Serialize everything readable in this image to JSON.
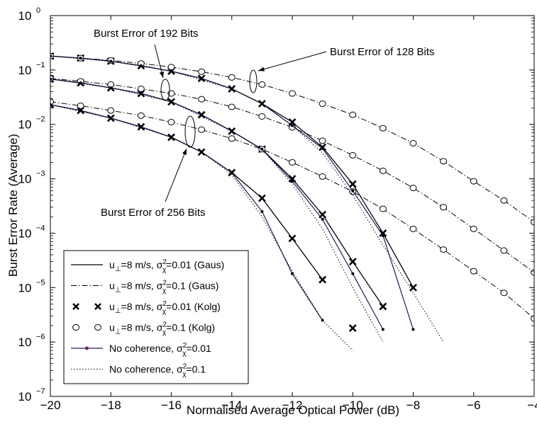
{
  "chart_data": {
    "type": "line",
    "title": "",
    "xlabel": "Normalised Average Optical Power (dB)",
    "ylabel": "Burst Error Rate (Average)",
    "xlim": [
      -20,
      -4
    ],
    "ylim_log10": [
      -7,
      0
    ],
    "yscale": "log",
    "grid": false,
    "legend_position": "bottom-left",
    "x_ticks": [
      -20,
      -18,
      -16,
      -14,
      -12,
      -10,
      -8,
      -6,
      -4
    ],
    "x_tick_labels": [
      "−20",
      "−18",
      "−16",
      "−14",
      "−12",
      "−10",
      "−8",
      "−6",
      "−4"
    ],
    "y_tick_exponents": [
      0,
      -1,
      -2,
      -3,
      -4,
      -5,
      -6,
      -7
    ],
    "y_tick_base": "10",
    "annotations": [
      {
        "text": "Burst Error of 192 Bits"
      },
      {
        "text": "Burst Error of 128 Bits"
      },
      {
        "text": "Burst Error of 256 Bits"
      }
    ],
    "legend": [
      {
        "style": "solid",
        "main": "u",
        "sub": "⊥",
        "rest1": "=8 m/s, σ",
        "sup": "2",
        "sub2": "χ",
        "rest2": "=0.01 (Gaus)"
      },
      {
        "style": "dashdot",
        "main": "u",
        "sub": "⊥",
        "rest1": "=8 m/s,  σ",
        "sup": "2",
        "sub2": "χ",
        "rest2": "=0.1 (Gaus)"
      },
      {
        "style": "x",
        "main": "u",
        "sub": "⊥",
        "rest1": "=8 m/s, σ",
        "sup": "2",
        "sub2": "χ",
        "rest2": "=0.01 (Kolg)"
      },
      {
        "style": "circle",
        "main": "u",
        "sub": "⊥",
        "rest1": "=8 m/s,  σ",
        "sup": "2",
        "sub2": "χ",
        "rest2": "=0.1 (Kolg)"
      },
      {
        "style": "dotline",
        "main": "No coherence, σ",
        "sub": "",
        "rest1": "",
        "sup": "2",
        "sub2": "χ",
        "rest2": "=0.01"
      },
      {
        "style": "dotted",
        "main": "No coherence,  σ",
        "sub": "",
        "rest1": "",
        "sup": "2",
        "sub2": "χ",
        "rest2": "=0.1"
      }
    ],
    "series": [
      {
        "style": "solid",
        "group": "128",
        "x": [
          -20,
          -19,
          -18,
          -17,
          -16,
          -15,
          -14,
          -13,
          -12,
          -11,
          -10,
          -9,
          -8
        ],
        "y": [
          0.18,
          0.165,
          0.145,
          0.12,
          0.095,
          0.07,
          0.045,
          0.024,
          0.011,
          0.0038,
          0.0008,
          0.0001,
          1e-05
        ]
      },
      {
        "style": "solid",
        "group": "192",
        "x": [
          -20,
          -19,
          -18,
          -17,
          -16,
          -15,
          -14,
          -13,
          -12,
          -11,
          -10,
          -9
        ],
        "y": [
          0.068,
          0.058,
          0.047,
          0.037,
          0.026,
          0.015,
          0.0075,
          0.0035,
          0.001,
          0.00022,
          3e-05,
          4.5e-06
        ]
      },
      {
        "style": "solid",
        "group": "256",
        "x": [
          -20,
          -19,
          -18,
          -17,
          -16,
          -15,
          -14,
          -13,
          -12,
          -11
        ],
        "y": [
          0.023,
          0.018,
          0.013,
          0.009,
          0.0058,
          0.0031,
          0.0013,
          0.00044,
          8e-05,
          1.4e-05
        ]
      },
      {
        "style": "dashdot",
        "group": "128",
        "x": [
          -20,
          -19,
          -18,
          -17,
          -16,
          -15,
          -14,
          -13,
          -12,
          -11,
          -10,
          -9,
          -8,
          -7,
          -6,
          -5,
          -4
        ],
        "y": [
          0.18,
          0.165,
          0.15,
          0.132,
          0.113,
          0.093,
          0.073,
          0.054,
          0.037,
          0.024,
          0.015,
          0.0085,
          0.0045,
          0.0021,
          0.0009,
          0.0004,
          0.00016
        ]
      },
      {
        "style": "dashdot",
        "group": "192",
        "x": [
          -20,
          -19,
          -18,
          -17,
          -16,
          -15,
          -14,
          -13,
          -12,
          -11,
          -10,
          -9,
          -8,
          -7,
          -6,
          -5,
          -4
        ],
        "y": [
          0.07,
          0.062,
          0.054,
          0.045,
          0.037,
          0.029,
          0.021,
          0.014,
          0.0088,
          0.005,
          0.0027,
          0.0014,
          0.00068,
          0.0003,
          0.00012,
          4.8e-05,
          1.9e-05
        ]
      },
      {
        "style": "dashdot",
        "group": "256",
        "x": [
          -20,
          -19,
          -18,
          -17,
          -16,
          -15,
          -14,
          -13,
          -12,
          -11,
          -10,
          -9,
          -8,
          -7,
          -6,
          -5,
          -4
        ],
        "y": [
          0.026,
          0.022,
          0.018,
          0.0145,
          0.011,
          0.008,
          0.0055,
          0.0035,
          0.002,
          0.0011,
          0.00058,
          0.00028,
          0.00012,
          5e-05,
          2e-05,
          8e-06,
          2.7e-06
        ]
      },
      {
        "style": "x",
        "group": "128",
        "x": [
          -20,
          -19,
          -18,
          -17,
          -16,
          -15,
          -14,
          -13,
          -12,
          -11,
          -10,
          -9,
          -8
        ],
        "y": [
          0.18,
          0.165,
          0.145,
          0.12,
          0.095,
          0.07,
          0.045,
          0.024,
          0.011,
          0.0038,
          0.0008,
          0.0001,
          1e-05
        ]
      },
      {
        "style": "x",
        "group": "192",
        "x": [
          -20,
          -19,
          -18,
          -17,
          -16,
          -15,
          -14,
          -13,
          -12,
          -11,
          -10,
          -9
        ],
        "y": [
          0.068,
          0.058,
          0.047,
          0.037,
          0.026,
          0.015,
          0.0075,
          0.0035,
          0.001,
          0.00022,
          3e-05,
          4.5e-06
        ]
      },
      {
        "style": "x",
        "group": "256",
        "x": [
          -20,
          -19,
          -18,
          -17,
          -16,
          -15,
          -14,
          -13,
          -12,
          -11,
          -10
        ],
        "y": [
          0.023,
          0.018,
          0.013,
          0.009,
          0.0058,
          0.0031,
          0.0013,
          0.00044,
          8e-05,
          1.4e-05,
          1.8e-06
        ]
      },
      {
        "style": "circle",
        "group": "128",
        "x": [
          -20,
          -19,
          -18,
          -17,
          -16,
          -15,
          -14,
          -13,
          -12,
          -11,
          -10,
          -9,
          -8,
          -7,
          -6,
          -5,
          -4
        ],
        "y": [
          0.18,
          0.165,
          0.15,
          0.132,
          0.113,
          0.093,
          0.073,
          0.054,
          0.037,
          0.024,
          0.015,
          0.0085,
          0.0045,
          0.0021,
          0.0009,
          0.0004,
          0.00016
        ]
      },
      {
        "style": "circle",
        "group": "192",
        "x": [
          -20,
          -19,
          -18,
          -17,
          -16,
          -15,
          -14,
          -13,
          -12,
          -11,
          -10,
          -9,
          -8,
          -7,
          -6,
          -5,
          -4
        ],
        "y": [
          0.07,
          0.062,
          0.054,
          0.045,
          0.037,
          0.029,
          0.021,
          0.014,
          0.0088,
          0.005,
          0.0027,
          0.0014,
          0.00068,
          0.0003,
          0.00012,
          4.8e-05,
          1.9e-05
        ]
      },
      {
        "style": "circle",
        "group": "256",
        "x": [
          -20,
          -19,
          -18,
          -17,
          -16,
          -15,
          -14,
          -13,
          -12,
          -11,
          -10,
          -9,
          -8,
          -7,
          -6,
          -5,
          -4
        ],
        "y": [
          0.026,
          0.022,
          0.018,
          0.0145,
          0.011,
          0.008,
          0.0055,
          0.0035,
          0.002,
          0.0011,
          0.00058,
          0.00028,
          0.00012,
          5e-05,
          2e-05,
          8e-06,
          2.7e-06
        ]
      },
      {
        "style": "dotline",
        "group": "128",
        "x": [
          -20,
          -19,
          -18,
          -17,
          -16,
          -15,
          -14,
          -13,
          -12,
          -11,
          -10,
          -9,
          -8
        ],
        "y": [
          0.18,
          0.165,
          0.145,
          0.12,
          0.095,
          0.07,
          0.045,
          0.024,
          0.0095,
          0.0036,
          0.0006,
          9e-05,
          1.7e-06
        ]
      },
      {
        "style": "dotline",
        "group": "192",
        "x": [
          -20,
          -19,
          -18,
          -17,
          -16,
          -15,
          -14,
          -13,
          -12,
          -11,
          -10,
          -9
        ],
        "y": [
          0.068,
          0.058,
          0.047,
          0.037,
          0.026,
          0.015,
          0.0075,
          0.0035,
          0.0009,
          0.00018,
          1.8e-05,
          1.7e-06
        ]
      },
      {
        "style": "dotline",
        "group": "256",
        "x": [
          -20,
          -19,
          -18,
          -17,
          -16,
          -15,
          -14,
          -13,
          -12,
          -11
        ],
        "y": [
          0.023,
          0.018,
          0.013,
          0.009,
          0.0058,
          0.0031,
          0.0013,
          0.00025,
          1.8e-05,
          2.5e-06
        ]
      },
      {
        "style": "dotted",
        "group": "128",
        "x": [
          -20,
          -18,
          -16,
          -14,
          -13,
          -12,
          -11,
          -10,
          -9,
          -8,
          -7
        ],
        "y": [
          0.18,
          0.145,
          0.095,
          0.045,
          0.024,
          0.0095,
          0.003,
          0.0005,
          6e-05,
          8e-06,
          1e-06
        ]
      },
      {
        "style": "dotted",
        "group": "192",
        "x": [
          -20,
          -18,
          -16,
          -14,
          -13,
          -12,
          -11,
          -10,
          -9
        ],
        "y": [
          0.068,
          0.047,
          0.026,
          0.0075,
          0.0035,
          0.0008,
          0.00012,
          1e-05,
          1e-06
        ]
      },
      {
        "style": "dotted",
        "group": "256",
        "x": [
          -20,
          -18,
          -16,
          -15,
          -14,
          -13,
          -12,
          -11,
          -10
        ],
        "y": [
          0.023,
          0.013,
          0.0058,
          0.0031,
          0.0012,
          0.0002,
          2e-05,
          2.5e-06,
          7e-07
        ]
      }
    ]
  }
}
